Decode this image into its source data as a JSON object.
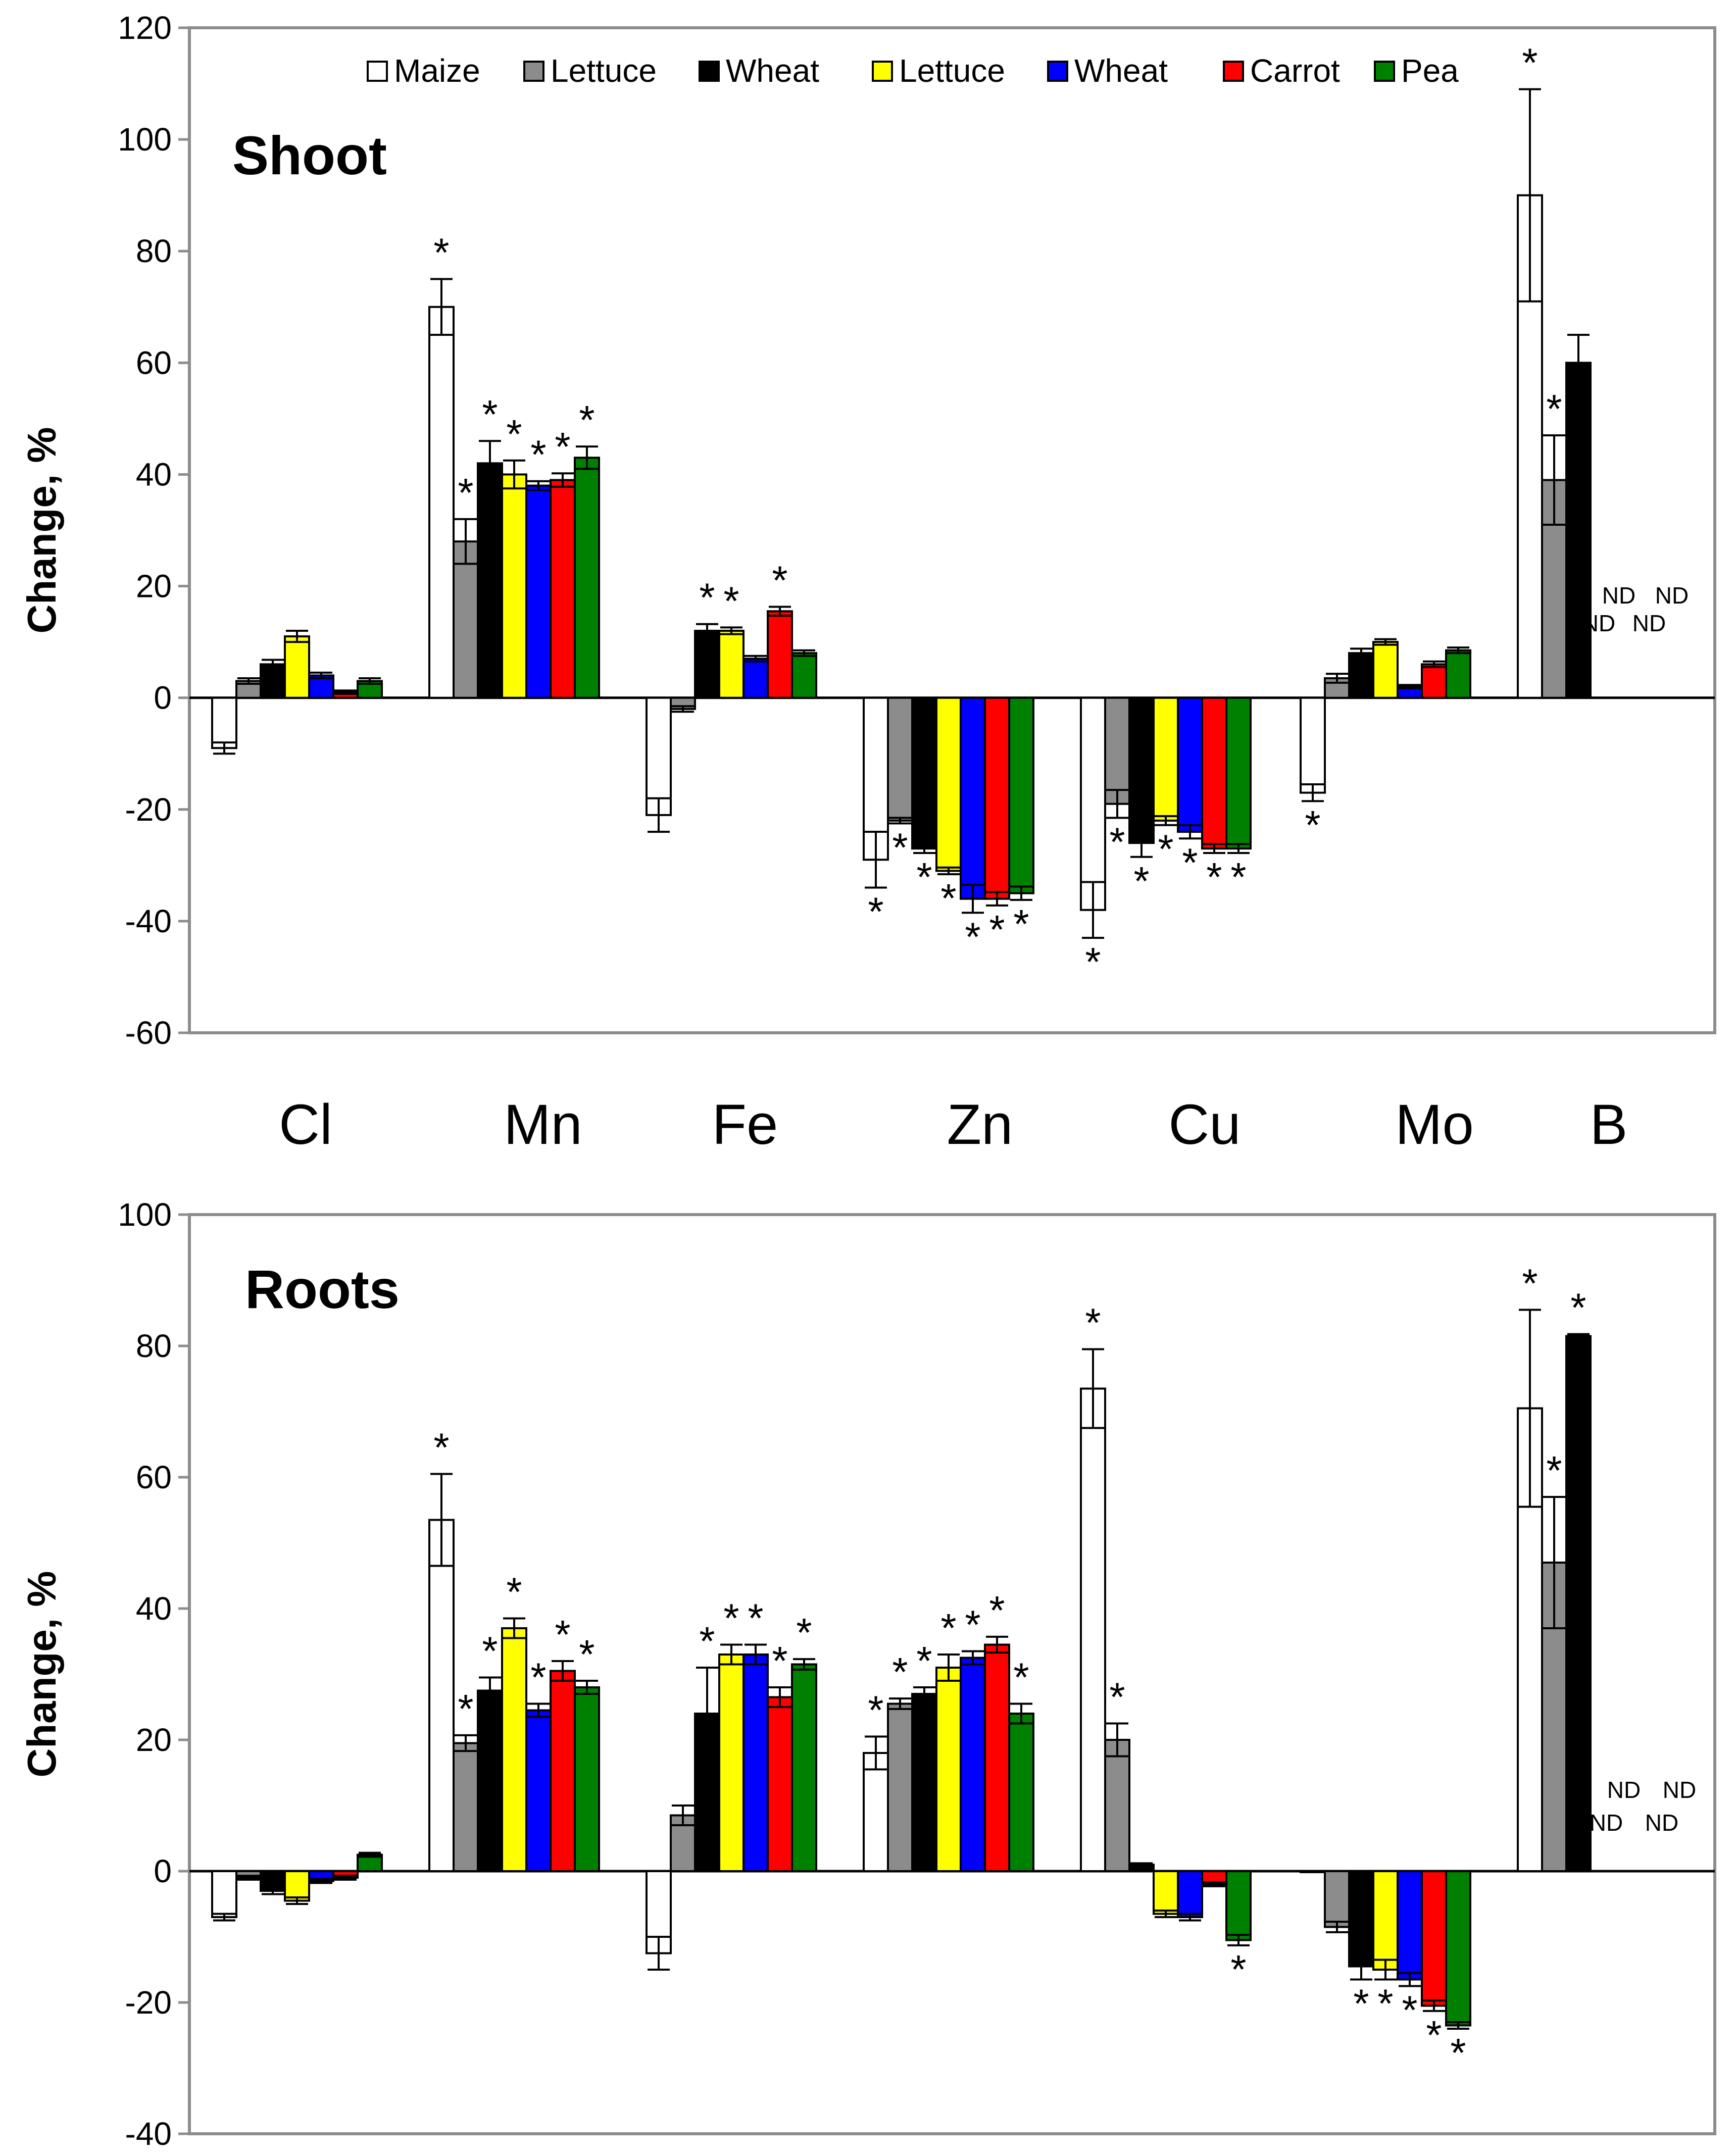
{
  "colors": {
    "series": [
      "#ffffff",
      "#8c8c8c",
      "#000000",
      "#ffff00",
      "#0000ff",
      "#ff0000",
      "#008000"
    ],
    "axis": "#8c8c8c",
    "bar_stroke": "#000000"
  },
  "legend": [
    "Maize",
    "Lettuce",
    "Wheat",
    "Lettuce",
    "Wheat",
    "Carrot",
    "Pea"
  ],
  "categories": [
    "Cl",
    "Mn",
    "Fe",
    "Zn",
    "Cu",
    "Mo",
    "B"
  ],
  "nd_label": "ND",
  "star_label": "*",
  "chart_data": [
    {
      "type": "bar",
      "panel": "Shoot",
      "title": "Shoot",
      "ylabel": "Change, %",
      "xlabel": "",
      "ylim": [
        -60,
        120
      ],
      "yticks": [
        120,
        100,
        80,
        60,
        40,
        20,
        0,
        -20,
        -40,
        -60
      ],
      "categories": [
        "Cl",
        "Mn",
        "Fe",
        "Zn",
        "Cu",
        "Mo",
        "B"
      ],
      "series": [
        {
          "name": "Maize",
          "values": [
            -9,
            70,
            -21,
            -29,
            -38,
            -17,
            90
          ],
          "errors": [
            1,
            5,
            3,
            5,
            5,
            1.5,
            19
          ],
          "sig": [
            false,
            true,
            false,
            true,
            true,
            true,
            true
          ]
        },
        {
          "name": "Lettuce",
          "values": [
            3,
            28,
            -2,
            -22,
            -19,
            3.5,
            39
          ],
          "errors": [
            0.5,
            4,
            0.5,
            0.5,
            2.5,
            0.8,
            8
          ],
          "sig": [
            false,
            true,
            false,
            true,
            true,
            false,
            true
          ]
        },
        {
          "name": "Wheat",
          "values": [
            6,
            42,
            12,
            -27,
            -26,
            8,
            60
          ],
          "errors": [
            0.8,
            4,
            1.2,
            0.8,
            2.5,
            0.8,
            5
          ],
          "sig": [
            false,
            true,
            true,
            true,
            true,
            false,
            false
          ]
        },
        {
          "name": "Lettuce",
          "values": [
            11,
            40,
            12,
            -31,
            -22,
            10,
            null
          ],
          "errors": [
            1,
            2.5,
            0.6,
            0.6,
            0.8,
            0.5,
            0
          ],
          "sig": [
            false,
            true,
            true,
            true,
            true,
            false,
            false
          ]
        },
        {
          "name": "Wheat",
          "values": [
            4,
            38,
            7,
            -36,
            -24,
            2,
            null
          ],
          "errors": [
            0.5,
            0.8,
            0.5,
            2.5,
            1.2,
            0.3,
            0
          ],
          "sig": [
            false,
            true,
            false,
            true,
            true,
            false,
            false
          ]
        },
        {
          "name": "Carrot",
          "values": [
            1,
            39,
            15.5,
            -36,
            -27,
            6,
            null
          ],
          "errors": [
            0.3,
            1.2,
            0.8,
            1.2,
            0.8,
            0.5,
            0
          ],
          "sig": [
            false,
            true,
            true,
            true,
            true,
            false,
            false
          ]
        },
        {
          "name": "Pea",
          "values": [
            3,
            43,
            8,
            -35,
            -27,
            8.5,
            null
          ],
          "errors": [
            0.5,
            2,
            0.5,
            1.2,
            0.8,
            0.5,
            0
          ],
          "sig": [
            false,
            true,
            false,
            true,
            true,
            false,
            false
          ]
        }
      ]
    },
    {
      "type": "bar",
      "panel": "Roots",
      "title": "Roots",
      "ylabel": "Change, %",
      "xlabel": "",
      "ylim": [
        -40,
        100
      ],
      "yticks": [
        100,
        80,
        60,
        40,
        20,
        0,
        -20,
        -40
      ],
      "categories": [
        "Cl",
        "Mn",
        "Fe",
        "Zn",
        "Cu",
        "Mo",
        "B"
      ],
      "series": [
        {
          "name": "Maize",
          "values": [
            -7,
            53.5,
            -12.5,
            18,
            73.5,
            0,
            70.5
          ],
          "errors": [
            0.5,
            7,
            2.5,
            2.5,
            6,
            0,
            15
          ],
          "sig": [
            false,
            true,
            false,
            true,
            true,
            false,
            true
          ]
        },
        {
          "name": "Lettuce",
          "values": [
            -1,
            19.5,
            8.5,
            25.5,
            20,
            -8.5,
            47
          ],
          "errors": [
            0.3,
            1.2,
            1.5,
            0.8,
            2.5,
            0.8,
            10
          ],
          "sig": [
            false,
            true,
            false,
            true,
            true,
            false,
            true
          ]
        },
        {
          "name": "Wheat",
          "values": [
            -3,
            27.5,
            24,
            27,
            1,
            -14.5,
            81.5
          ],
          "errors": [
            0.5,
            2,
            7,
            1,
            0.2,
            2,
            0.3
          ],
          "sig": [
            false,
            true,
            true,
            true,
            false,
            true,
            true
          ]
        },
        {
          "name": "Lettuce",
          "values": [
            -4.5,
            37,
            33,
            31,
            -6.5,
            -15,
            null
          ],
          "errors": [
            0.5,
            1.5,
            1.5,
            2,
            0.5,
            1.5,
            0
          ],
          "sig": [
            false,
            true,
            true,
            true,
            false,
            true,
            false
          ]
        },
        {
          "name": "Wheat",
          "values": [
            -1.5,
            24.5,
            33,
            32.5,
            -7,
            -16.5,
            null
          ],
          "errors": [
            0.3,
            1,
            1.5,
            1,
            0.5,
            1,
            0
          ],
          "sig": [
            false,
            true,
            true,
            true,
            false,
            true,
            false
          ]
        },
        {
          "name": "Carrot",
          "values": [
            -1,
            30.5,
            26.5,
            34.5,
            -2,
            -20.5,
            null
          ],
          "errors": [
            0.3,
            1.5,
            1.5,
            1.2,
            0.3,
            0.8,
            0
          ],
          "sig": [
            false,
            true,
            true,
            true,
            false,
            true,
            false
          ]
        },
        {
          "name": "Pea",
          "values": [
            2.5,
            28,
            31.5,
            24,
            -10.5,
            -23.5,
            null
          ],
          "errors": [
            0.3,
            1,
            0.8,
            1.5,
            0.8,
            0.5,
            0
          ],
          "sig": [
            false,
            true,
            true,
            true,
            true,
            true,
            false
          ]
        }
      ]
    }
  ]
}
